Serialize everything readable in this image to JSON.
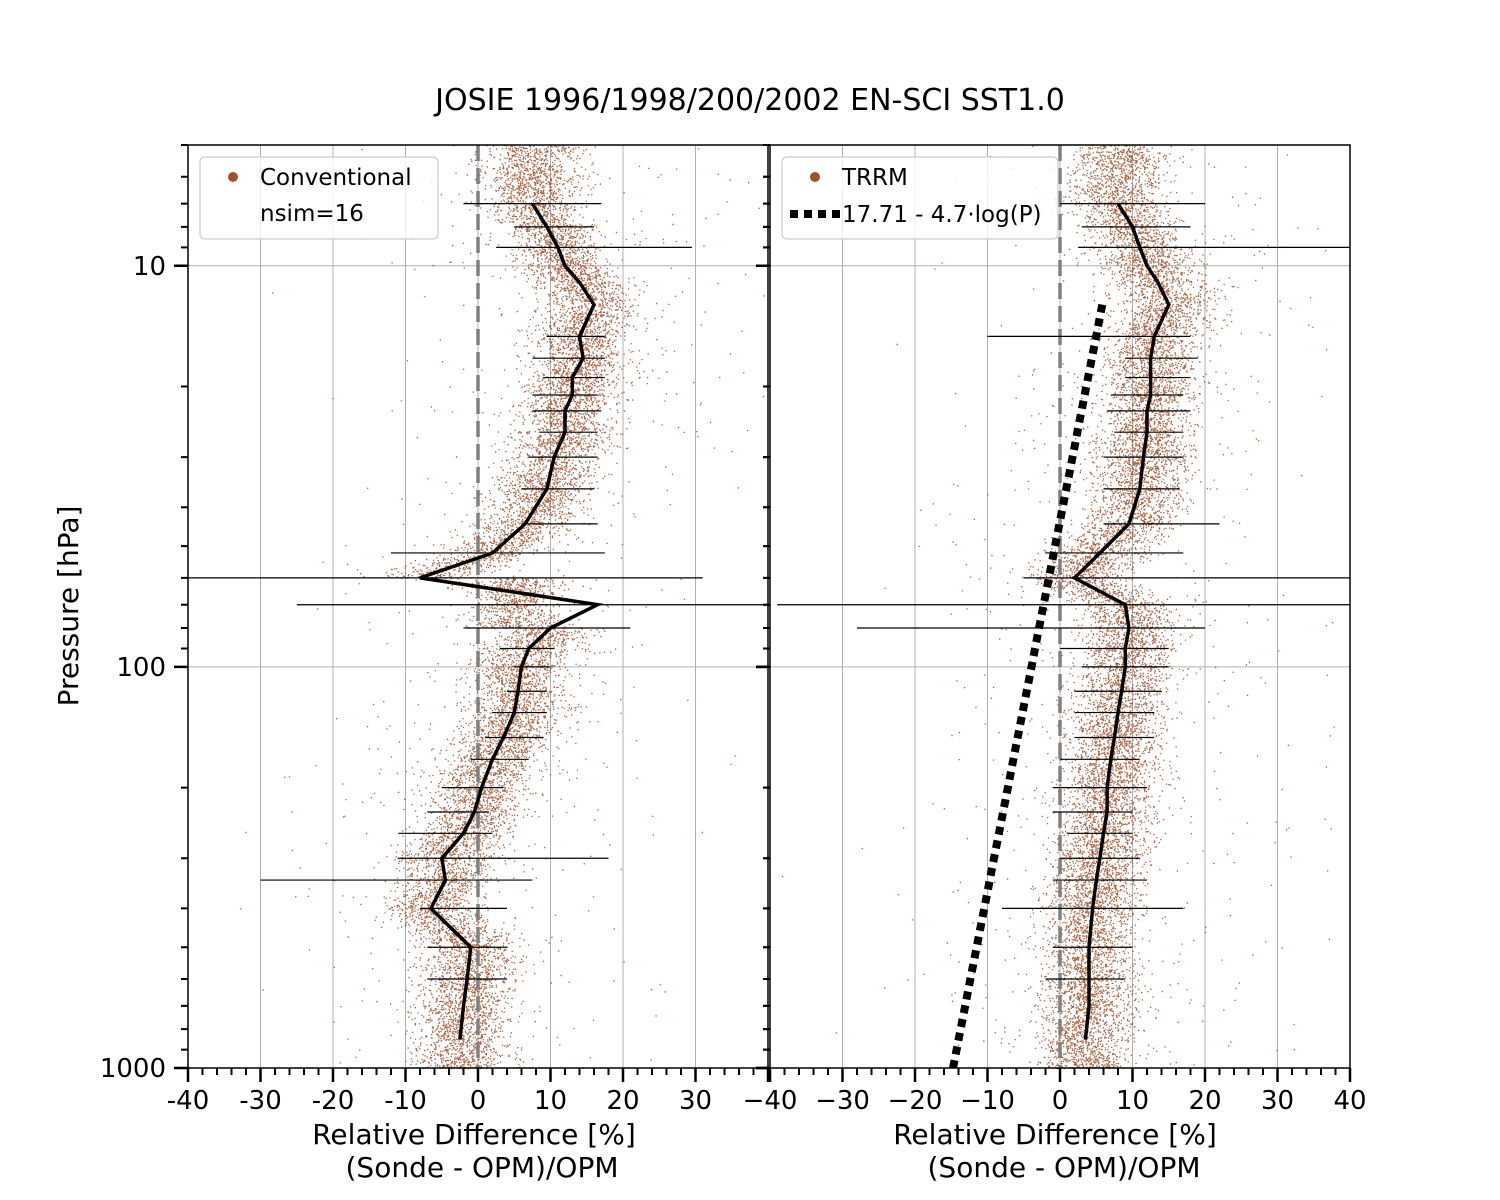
{
  "figure": {
    "title": "JOSIE 1996/1998/200/2002 EN-SCI SST1.0",
    "ylabel": "Pressure [hPa]",
    "xlabel_line1": "Relative Difference [%]",
    "xlabel_line2": "(Sonde - OPM)/OPM",
    "ytick_labels": [
      "10",
      "100",
      "1000"
    ],
    "colors": {
      "scatter": "#a0522d",
      "profile": "#000000",
      "zero_line": "#808080",
      "grid": "#b0b0b0"
    }
  },
  "chart_data": [
    {
      "type": "scatter",
      "panel": "left",
      "xlim": [
        -40,
        40
      ],
      "ylim": [
        1000,
        5
      ],
      "yscale": "log",
      "grid": true,
      "legend_position": "top-left",
      "xtick_labels": [
        "-40",
        "-30",
        "-20",
        "-10",
        "0",
        "10",
        "20",
        "30"
      ],
      "legend": {
        "scatter_label": "Conventional",
        "extra_label": "nsim=16"
      },
      "profile": {
        "pressure": [
          7,
          8,
          9,
          10,
          11,
          12.5,
          15,
          17,
          19,
          21,
          23,
          26,
          30,
          36,
          44,
          52,
          60,
          70,
          80,
          90,
          100,
          115,
          130,
          150,
          170,
          200,
          230,
          260,
          300,
          340,
          400,
          500,
          600,
          700,
          850
        ],
        "mean": [
          7.5,
          9.5,
          11,
          12,
          14,
          16,
          14,
          14.5,
          13,
          13,
          12,
          12,
          10.5,
          9.5,
          6.5,
          2,
          -8,
          16.5,
          10,
          7,
          6,
          5.5,
          5,
          3.5,
          2,
          0.5,
          -0.5,
          -2,
          -5,
          -4.5,
          -6.5,
          -1,
          -1.5,
          -2,
          -2.5
        ],
        "error_low": [
          -2,
          5,
          2.5,
          9.5,
          7.5,
          9,
          7.5,
          7.5,
          8.5,
          7,
          6,
          6,
          -12,
          -40,
          -25,
          -2,
          3,
          5,
          4,
          2,
          1,
          -1,
          -5,
          -7,
          -11,
          -11,
          -30,
          -8,
          -7,
          -7
        ],
        "error_high": [
          17,
          16,
          29.5,
          17.5,
          17.5,
          17.5,
          16.5,
          17,
          16.5,
          16.5,
          16,
          16.5,
          17.5,
          31,
          40,
          21,
          10.5,
          10,
          9.5,
          9.5,
          9,
          7,
          3.5,
          1.5,
          2,
          18,
          7.5,
          4,
          4,
          4
        ],
        "error_pressure": [
          7,
          8,
          9,
          15,
          17,
          19,
          21,
          23,
          26,
          30,
          36,
          44,
          52,
          60,
          70,
          80,
          90,
          100,
          115,
          130,
          150,
          170,
          200,
          230,
          260,
          300,
          340,
          400,
          500,
          600
        ]
      }
    },
    {
      "type": "scatter",
      "panel": "right",
      "xlim": [
        -40,
        40
      ],
      "ylim": [
        1000,
        5
      ],
      "yscale": "log",
      "grid": true,
      "legend_position": "top-left",
      "xtick_labels": [
        "−40",
        "−30",
        "−20",
        "−10",
        "0",
        "10",
        "20",
        "30",
        "40"
      ],
      "legend": {
        "scatter_label": "TRRM",
        "fit_label": "17.71 - 4.7·log(P)"
      },
      "fit": {
        "intercept": 17.71,
        "slope": -4.7,
        "pressure_range": [
          12.5,
          1000
        ]
      },
      "profile": {
        "pressure": [
          7,
          8,
          9,
          10,
          11,
          12.5,
          15,
          17,
          19,
          21,
          23,
          26,
          30,
          36,
          44,
          52,
          60,
          70,
          80,
          90,
          100,
          115,
          130,
          150,
          170,
          200,
          230,
          260,
          300,
          340,
          400,
          500,
          600,
          700,
          850
        ],
        "mean": [
          8,
          10,
          11,
          12,
          13.5,
          15,
          13,
          12.5,
          12.5,
          12.5,
          12,
          12,
          11.5,
          11,
          9.5,
          5.5,
          2,
          9,
          9.5,
          9,
          9,
          8.5,
          8,
          7.5,
          7,
          6.5,
          6.5,
          6,
          5.5,
          5,
          4.5,
          4,
          4,
          4,
          3.5
        ],
        "error_low": [
          0,
          3,
          2.5,
          -10,
          9,
          9,
          7,
          6.5,
          7.5,
          6,
          6,
          6,
          -2,
          -5,
          -39,
          -28,
          0,
          3,
          2,
          2,
          2,
          0,
          -1,
          -1,
          1,
          0,
          -1,
          -8,
          -1,
          -2
        ],
        "error_high": [
          20,
          18,
          40,
          18,
          19,
          18,
          17,
          18,
          17,
          17,
          16.5,
          22,
          17,
          40,
          40,
          20,
          15,
          15,
          14,
          13,
          13,
          11,
          12,
          10,
          10,
          11,
          12,
          17,
          10,
          9
        ],
        "error_pressure": [
          7,
          8,
          9,
          15,
          17,
          19,
          21,
          23,
          26,
          30,
          36,
          44,
          52,
          60,
          70,
          80,
          90,
          100,
          115,
          130,
          150,
          170,
          200,
          230,
          260,
          300,
          340,
          400,
          500,
          600
        ]
      }
    }
  ]
}
